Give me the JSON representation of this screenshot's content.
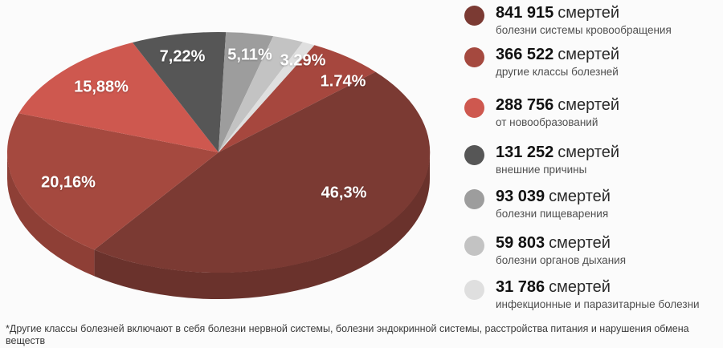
{
  "chart_data": {
    "type": "pie",
    "style": "3d",
    "legend_position": "right",
    "unit_word": "смертей",
    "slices": [
      {
        "category": "болезни системы кровообращения",
        "deaths_label": "841 915",
        "value": 841915,
        "percent_label": "46,3%",
        "percent": 46.3,
        "color": "#7b3a33"
      },
      {
        "category": "другие классы болезней",
        "deaths_label": "366 522",
        "value": 366522,
        "percent_label": "20,16%",
        "percent": 20.16,
        "color": "#a5493f"
      },
      {
        "category": "от новообразований",
        "deaths_label": "288 756",
        "value": 288756,
        "percent_label": "15,88%",
        "percent": 15.88,
        "color": "#ce584f"
      },
      {
        "category": "внешние причины",
        "deaths_label": "131 252",
        "value": 131252,
        "percent_label": "7,22%",
        "percent": 7.22,
        "color": "#565656"
      },
      {
        "category": "болезни пищеварения",
        "deaths_label": "93 039",
        "value": 93039,
        "percent_label": "5,11%",
        "percent": 5.11,
        "color": "#9d9d9d"
      },
      {
        "category": "болезни органов дыхания",
        "deaths_label": "59 803",
        "value": 59803,
        "percent_label": "3.29%",
        "percent": 3.29,
        "color": "#c3c3c3"
      },
      {
        "category": "инфекционные и паразитарные болезни",
        "deaths_label": "31 786",
        "value": 31786,
        "percent_label": "1.74%",
        "percent": 1.74,
        "color": "#dfdfdf"
      }
    ]
  },
  "footnote": "*Другие классы болезней включают в себя болезни нервной системы, болезни эндокринной системы, расстройства питания и нарушения обмена веществ",
  "colors": {
    "background": "#fbfbfb",
    "highlight_band": "#a6473e"
  }
}
